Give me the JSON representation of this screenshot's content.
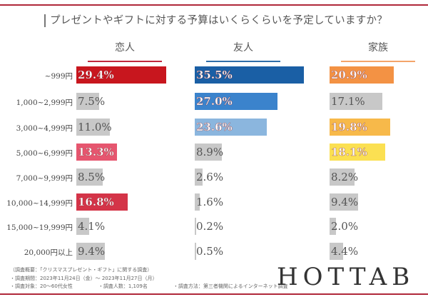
{
  "title": "プレゼントやギフトに対する予算はいくらくらいを予定していますか？",
  "chart_data": {
    "type": "bar",
    "orientation": "horizontal",
    "categories": [
      "~999円",
      "1,000~2,999円",
      "3,000~4,999円",
      "5,000~6,999円",
      "7,000~9,999円",
      "10,000~14,999円",
      "15,000~19,999円",
      "20,000円以上"
    ],
    "panels": [
      {
        "name": "恋人",
        "underline_color": "#c0283c",
        "values": [
          29.4,
          7.5,
          11.0,
          13.3,
          8.5,
          16.8,
          4.1,
          9.4
        ],
        "colors": [
          "#c8161e",
          "#c8c8c8",
          "#c8c8c8",
          "#e6566f",
          "#c8c8c8",
          "#d43448",
          "#c8c8c8",
          "#c8c8c8"
        ],
        "labels": [
          "29.4%",
          "7.5%",
          "11.0%",
          "13.3%",
          "8.5%",
          "16.8%",
          "4.1%",
          "9.4%"
        ]
      },
      {
        "name": "友人",
        "underline_color": "#2f6ea8",
        "values": [
          35.5,
          27.0,
          23.6,
          8.9,
          2.6,
          1.6,
          0.2,
          0.5
        ],
        "colors": [
          "#1a5fa5",
          "#3b83cc",
          "#8bb6de",
          "#c8c8c8",
          "#c8c8c8",
          "#c8c8c8",
          "#c8c8c8",
          "#c8c8c8"
        ],
        "labels": [
          "35.5%",
          "27.0%",
          "23.6%",
          "8.9%",
          "2.6%",
          "1.6%",
          "0.2%",
          "0.5%"
        ]
      },
      {
        "name": "家族",
        "underline_color": "#f4a46a",
        "values": [
          20.9,
          17.1,
          19.8,
          18.1,
          8.2,
          9.4,
          2.0,
          4.4
        ],
        "colors": [
          "#f39244",
          "#c8c8c8",
          "#f7b94a",
          "#fbe052",
          "#c8c8c8",
          "#c8c8c8",
          "#c8c8c8",
          "#c8c8c8"
        ],
        "labels": [
          "20.9%",
          "17.1%",
          "19.8%",
          "18.1%",
          "8.2%",
          "9.4%",
          "2.0%",
          "4.4%"
        ]
      }
    ],
    "highlighted": [
      [
        0,
        3,
        5
      ],
      [
        0,
        1,
        2
      ],
      [
        0,
        2,
        3
      ]
    ],
    "unit": "%"
  },
  "footer": {
    "line1": "（調査概要：「クリスマスプレゼント・ギフト」に関する調査）",
    "line2": "・調査期間：2023年11月24日（金）～ 2023年11月27日（月）",
    "line3a": "・調査対象：20～60代女性",
    "line3b": "・調査人数：1,109名",
    "line3c": "・調査方法：第三者機関によるインターネット調査"
  },
  "logo": "HOTTAB"
}
